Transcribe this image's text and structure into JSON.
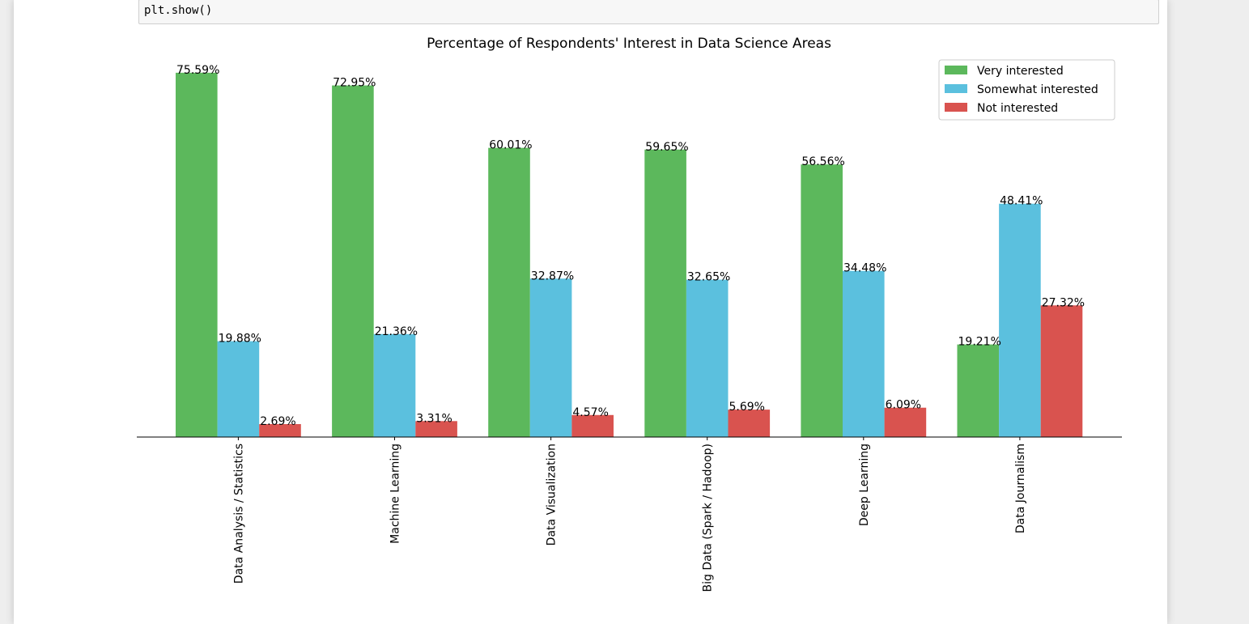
{
  "code_cell": {
    "source": "plt.show()"
  },
  "chart_data": {
    "type": "bar",
    "title": "Percentage of Respondents' Interest in Data Science Areas",
    "xlabel": "",
    "ylabel": "",
    "ylim": [
      0,
      80
    ],
    "y_axis_visible": false,
    "grid": false,
    "legend_position": "top-right",
    "categories": [
      "Data Analysis / Statistics",
      "Machine Learning",
      "Data Visualization",
      "Big Data (Spark / Hadoop)",
      "Deep Learning",
      "Data Journalism"
    ],
    "series": [
      {
        "name": "Very interested",
        "color": "#5cb85c",
        "values": [
          75.59,
          72.95,
          60.01,
          59.65,
          56.56,
          19.21
        ],
        "labels": [
          "75.59%",
          "72.95%",
          "60.01%",
          "59.65%",
          "56.56%",
          "19.21%"
        ]
      },
      {
        "name": "Somewhat interested",
        "color": "#5bc0de",
        "values": [
          19.88,
          21.36,
          32.87,
          32.65,
          34.48,
          48.41
        ],
        "labels": [
          "19.88%",
          "21.36%",
          "32.87%",
          "32.65%",
          "34.48%",
          "48.41%"
        ]
      },
      {
        "name": "Not interested",
        "color": "#d9534f",
        "values": [
          2.69,
          3.31,
          4.57,
          5.69,
          6.09,
          27.32
        ],
        "labels": [
          "2.69%",
          "3.31%",
          "4.57%",
          "5.69%",
          "6.09%",
          "27.32%"
        ]
      }
    ]
  }
}
